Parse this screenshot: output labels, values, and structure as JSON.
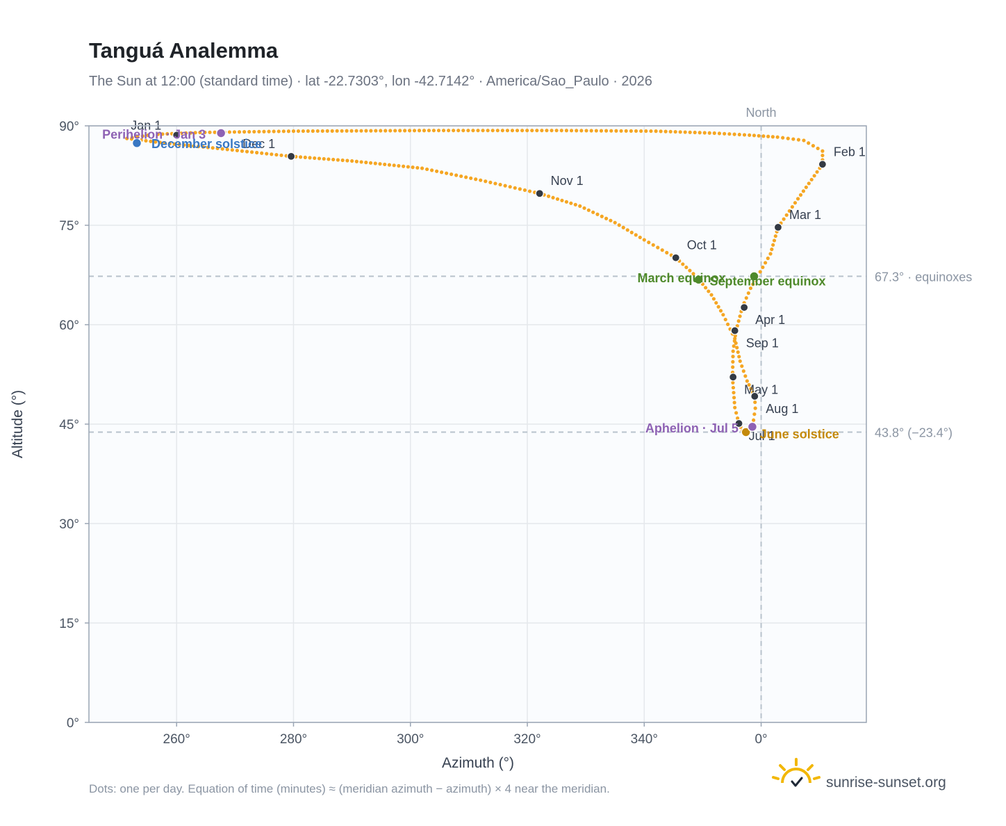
{
  "title": "Tanguá Analemma",
  "subtitle": "The Sun at 12:00 (standard time) · lat -22.7303°, lon -42.7142° · America/Sao_Paulo · 2026",
  "footnote": "Dots: one per day. Equation of time (minutes) ≈ (meridian azimuth − azimuth) × 4 near the meridian.",
  "brand": {
    "name": "sunrise-sunset.org",
    "icon": "sun-check-icon"
  },
  "colors": {
    "analemma": "#f5a623",
    "month_marker": "#333a44",
    "equinox": "#4f8a2b",
    "june_solstice": "#c48a0b",
    "december_solstice": "#3a78c3",
    "apsis": "#8e62b4",
    "grid": "#e5e8ec",
    "reference_line": "#b8c2cc",
    "plot_bg": "#fafcfe",
    "frame": "#9aa5b4"
  },
  "chart_data": {
    "type": "scatter",
    "title": "Tanguá Analemma",
    "xlabel": "Azimuth (°)",
    "ylabel": "Altitude (°)",
    "xlim": [
      -115,
      18
    ],
    "ylim": [
      0,
      90
    ],
    "x_ticks": [
      {
        "value": -100,
        "label": "260°"
      },
      {
        "value": -80,
        "label": "280°"
      },
      {
        "value": -60,
        "label": "300°"
      },
      {
        "value": -40,
        "label": "320°"
      },
      {
        "value": -20,
        "label": "340°"
      },
      {
        "value": 0,
        "label": "0°"
      }
    ],
    "y_ticks": [
      {
        "value": 0,
        "label": "0°"
      },
      {
        "value": 15,
        "label": "15°"
      },
      {
        "value": 30,
        "label": "30°"
      },
      {
        "value": 45,
        "label": "45°"
      },
      {
        "value": 60,
        "label": "60°"
      },
      {
        "value": 75,
        "label": "75°"
      },
      {
        "value": 90,
        "label": "90°"
      }
    ],
    "grid": true,
    "north_line": {
      "azimuth": 0,
      "label": "North"
    },
    "reference_lines": [
      {
        "altitude": 67.3,
        "label": "67.3° · equinoxes"
      },
      {
        "altitude": 43.8,
        "label": "43.8° (−23.4°)"
      }
    ],
    "analemma_path": [
      [
        -108.5,
        88.1
      ],
      [
        -102,
        87.4
      ],
      [
        -93,
        86.6
      ],
      [
        -80.4,
        85.4
      ],
      [
        -70,
        84.7
      ],
      [
        -58,
        83.6
      ],
      [
        -48,
        81.8
      ],
      [
        -37.9,
        79.8
      ],
      [
        -31,
        77.9
      ],
      [
        -25,
        75.4
      ],
      [
        -20,
        72.8
      ],
      [
        -14.6,
        70.1
      ],
      [
        -11,
        67.2
      ],
      [
        -8.5,
        64.5
      ],
      [
        -6.5,
        61.5
      ],
      [
        -4.5,
        57.9
      ],
      [
        -3.6,
        54.5
      ],
      [
        -2.4,
        51.5
      ],
      [
        -1.1,
        49.2
      ],
      [
        -1.0,
        47.4
      ],
      [
        -1.3,
        45.6
      ],
      [
        -2.2,
        44.3
      ],
      [
        -2.6,
        43.8
      ],
      [
        -3.2,
        44.0
      ],
      [
        -3.8,
        45.1
      ],
      [
        -4.5,
        47.5
      ],
      [
        -4.9,
        52.0
      ],
      [
        -4.8,
        56.0
      ],
      [
        -4.3,
        59.1
      ],
      [
        -3.4,
        62.0
      ],
      [
        -2.9,
        63.3
      ],
      [
        -1.8,
        65.5
      ],
      [
        -0.6,
        67.3
      ],
      [
        1.6,
        70.7
      ],
      [
        2.9,
        74.7
      ],
      [
        6.3,
        79.0
      ],
      [
        10.5,
        84.2
      ],
      [
        10.5,
        86.2
      ],
      [
        7.3,
        87.8
      ],
      [
        2.8,
        88.3
      ],
      [
        -2.0,
        88.6
      ],
      [
        -8,
        88.9
      ],
      [
        -18,
        89.2
      ],
      [
        -35,
        89.3
      ],
      [
        -56,
        89.3
      ],
      [
        -80,
        89.2
      ],
      [
        -96,
        89.0
      ],
      [
        -104,
        88.7
      ],
      [
        -108.5,
        88.1
      ]
    ],
    "month_markers": [
      {
        "label": "Jan 1",
        "azimuth": -100,
        "altitude": 88.6
      },
      {
        "label": "Feb 1",
        "azimuth": 10.5,
        "altitude": 84.2
      },
      {
        "label": "Mar 1",
        "azimuth": 2.9,
        "altitude": 74.7
      },
      {
        "label": "Apr 1",
        "azimuth": -2.9,
        "altitude": 62.6
      },
      {
        "label": "May 1",
        "azimuth": -4.8,
        "altitude": 52.1
      },
      {
        "label": "Jul 1",
        "azimuth": -3.8,
        "altitude": 45.1
      },
      {
        "label": "Aug 1",
        "azimuth": -1.1,
        "altitude": 49.2
      },
      {
        "label": "Sep 1",
        "azimuth": -4.5,
        "altitude": 59.1
      },
      {
        "label": "Oct 1",
        "azimuth": -14.6,
        "altitude": 70.1
      },
      {
        "label": "Nov 1",
        "azimuth": -37.9,
        "altitude": 79.8
      },
      {
        "label": "Dec 1",
        "azimuth": -80.4,
        "altitude": 85.4
      }
    ],
    "events": [
      {
        "label": "March equinox",
        "azimuth": -10.7,
        "altitude": 66.8,
        "kind": "equinox"
      },
      {
        "label": "September equinox",
        "azimuth": -1.2,
        "altitude": 67.3,
        "kind": "equinox"
      },
      {
        "label": "June solstice",
        "azimuth": -2.6,
        "altitude": 43.8,
        "kind": "june_solstice"
      },
      {
        "label": "December solstice",
        "azimuth": -106.8,
        "altitude": 87.4,
        "kind": "december_solstice"
      },
      {
        "label": "Perihelion · Jan 3",
        "azimuth": -92.4,
        "altitude": 88.9,
        "kind": "apsis"
      },
      {
        "label": "Aphelion · Jul 5",
        "azimuth": -1.5,
        "altitude": 44.6,
        "kind": "apsis"
      }
    ]
  }
}
